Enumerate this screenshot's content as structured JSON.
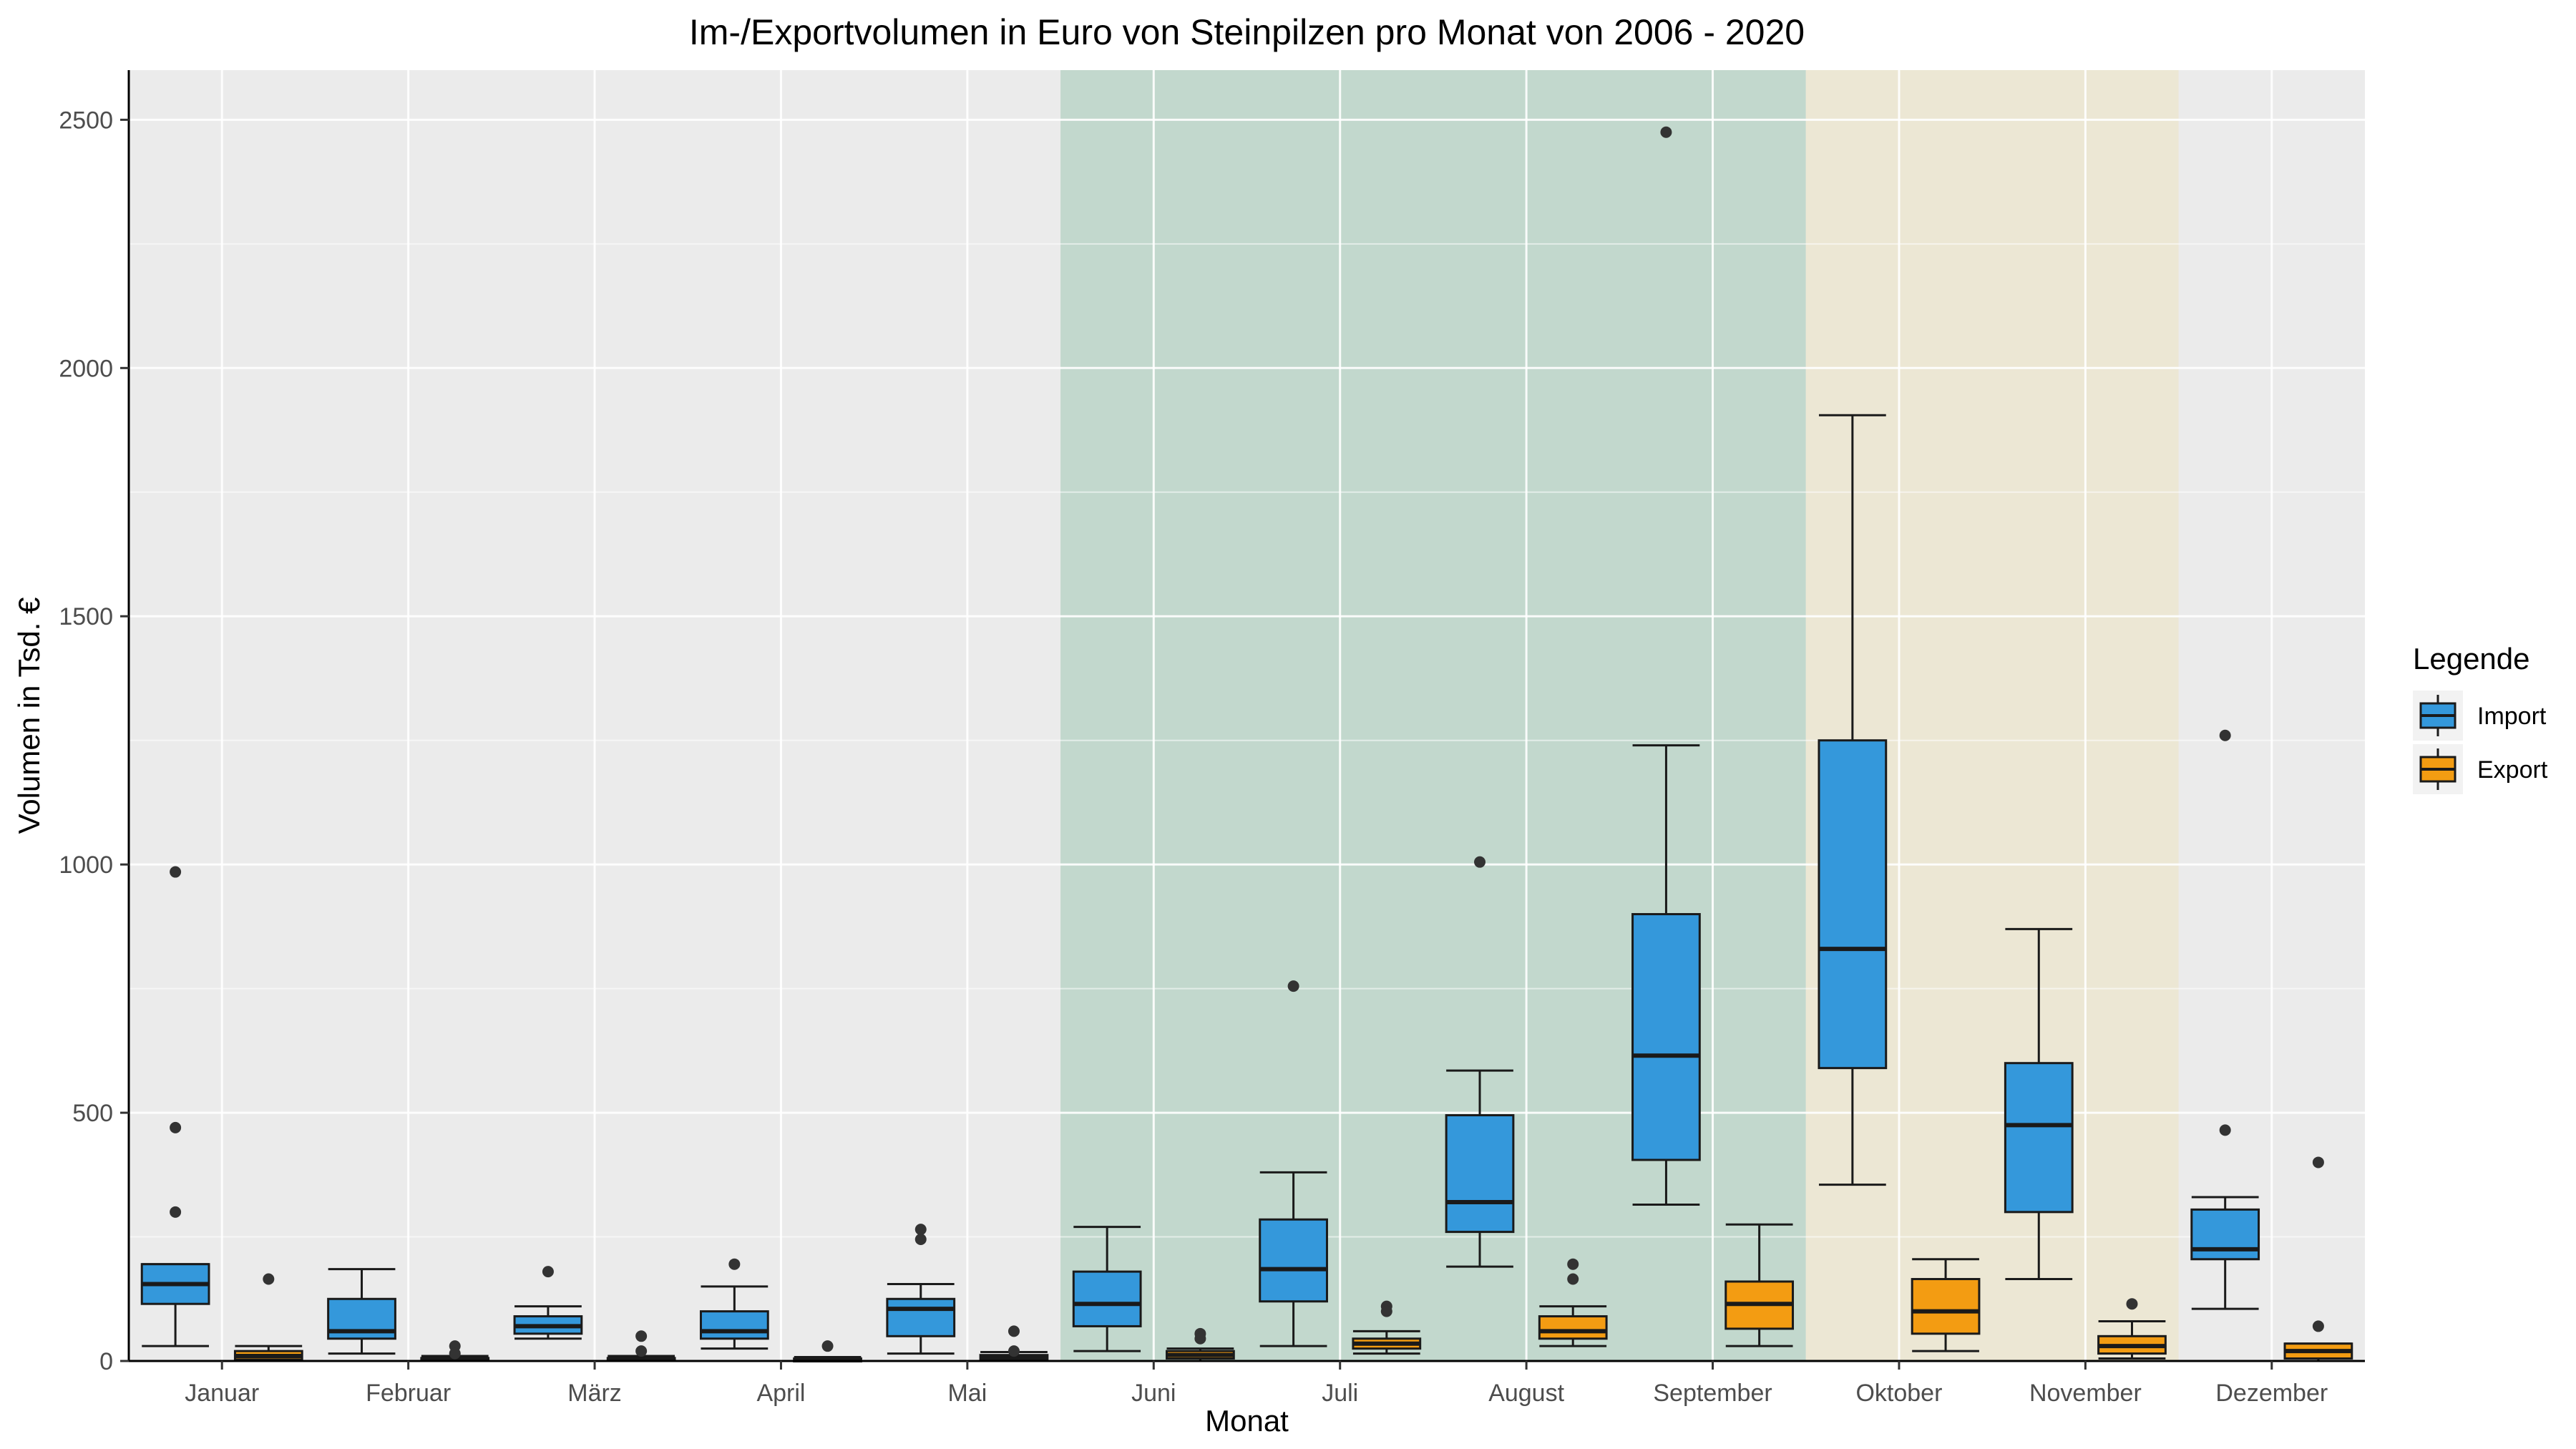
{
  "chart_data": {
    "type": "box",
    "title": "Im-/Exportvolumen in Euro von Steinpilzen pro Monat von 2006 - 2020",
    "xlabel": "Monat",
    "ylabel": "Volumen in Tsd. €",
    "ylim": [
      0,
      2600
    ],
    "yticks": [
      0,
      500,
      1000,
      1500,
      2000,
      2500
    ],
    "grid": true,
    "legend": {
      "title": "Legende",
      "position": "right",
      "entries": [
        {
          "name": "Import",
          "color": "#3498db"
        },
        {
          "name": "Export",
          "color": "#f39c12"
        }
      ]
    },
    "categories": [
      "Januar",
      "Februar",
      "März",
      "April",
      "Mai",
      "Juni",
      "Juli",
      "August",
      "September",
      "Oktober",
      "November",
      "Dezember"
    ],
    "season_shading": [
      {
        "from": "Juni",
        "to": "September",
        "color": "#c2d8cd"
      },
      {
        "from": "Oktober",
        "to": "November",
        "color": "#ece7d4"
      }
    ],
    "series": [
      {
        "name": "Import",
        "color": "#3498db",
        "boxes": [
          {
            "min": 30,
            "q1": 115,
            "median": 155,
            "q3": 195,
            "max": 195,
            "outliers": [
              985,
              470,
              300
            ]
          },
          {
            "min": 15,
            "q1": 45,
            "median": 60,
            "q3": 125,
            "max": 185,
            "outliers": []
          },
          {
            "min": 45,
            "q1": 55,
            "median": 70,
            "q3": 90,
            "max": 110,
            "outliers": [
              180
            ]
          },
          {
            "min": 25,
            "q1": 45,
            "median": 60,
            "q3": 100,
            "max": 150,
            "outliers": [
              195
            ]
          },
          {
            "min": 15,
            "q1": 50,
            "median": 105,
            "q3": 125,
            "max": 155,
            "outliers": [
              265,
              245
            ]
          },
          {
            "min": 20,
            "q1": 70,
            "median": 115,
            "q3": 180,
            "max": 270,
            "outliers": []
          },
          {
            "min": 30,
            "q1": 120,
            "median": 185,
            "q3": 285,
            "max": 380,
            "outliers": [
              755
            ]
          },
          {
            "min": 190,
            "q1": 260,
            "median": 320,
            "q3": 495,
            "max": 585,
            "outliers": [
              1005
            ]
          },
          {
            "min": 315,
            "q1": 405,
            "median": 615,
            "q3": 900,
            "max": 1240,
            "outliers": [
              2475
            ]
          },
          {
            "min": 355,
            "q1": 590,
            "median": 830,
            "q3": 1250,
            "max": 1905,
            "outliers": []
          },
          {
            "min": 165,
            "q1": 300,
            "median": 475,
            "q3": 600,
            "max": 870,
            "outliers": []
          },
          {
            "min": 105,
            "q1": 205,
            "median": 225,
            "q3": 305,
            "max": 330,
            "outliers": [
              1260,
              465
            ]
          }
        ]
      },
      {
        "name": "Export",
        "color": "#f39c12",
        "boxes": [
          {
            "min": 0,
            "q1": 3,
            "median": 10,
            "q3": 20,
            "max": 30,
            "outliers": [
              165
            ]
          },
          {
            "min": 0,
            "q1": 1,
            "median": 3,
            "q3": 6,
            "max": 10,
            "outliers": [
              30,
              15
            ]
          },
          {
            "min": 0,
            "q1": 1,
            "median": 3,
            "q3": 6,
            "max": 10,
            "outliers": [
              50,
              20
            ]
          },
          {
            "min": 0,
            "q1": 1,
            "median": 3,
            "q3": 5,
            "max": 8,
            "outliers": [
              30
            ]
          },
          {
            "min": 0,
            "q1": 2,
            "median": 6,
            "q3": 12,
            "max": 18,
            "outliers": [
              60,
              20
            ]
          },
          {
            "min": 0,
            "q1": 5,
            "median": 12,
            "q3": 20,
            "max": 25,
            "outliers": [
              55,
              45
            ]
          },
          {
            "min": 15,
            "q1": 25,
            "median": 35,
            "q3": 45,
            "max": 60,
            "outliers": [
              110,
              100
            ]
          },
          {
            "min": 30,
            "q1": 45,
            "median": 60,
            "q3": 90,
            "max": 110,
            "outliers": [
              195,
              165
            ]
          },
          {
            "min": 30,
            "q1": 65,
            "median": 115,
            "q3": 160,
            "max": 275,
            "outliers": []
          },
          {
            "min": 20,
            "q1": 55,
            "median": 100,
            "q3": 165,
            "max": 205,
            "outliers": []
          },
          {
            "min": 5,
            "q1": 15,
            "median": 30,
            "q3": 50,
            "max": 80,
            "outliers": [
              115
            ]
          },
          {
            "min": 0,
            "q1": 5,
            "median": 20,
            "q3": 35,
            "max": 35,
            "outliers": [
              400,
              70
            ]
          }
        ]
      }
    ]
  }
}
